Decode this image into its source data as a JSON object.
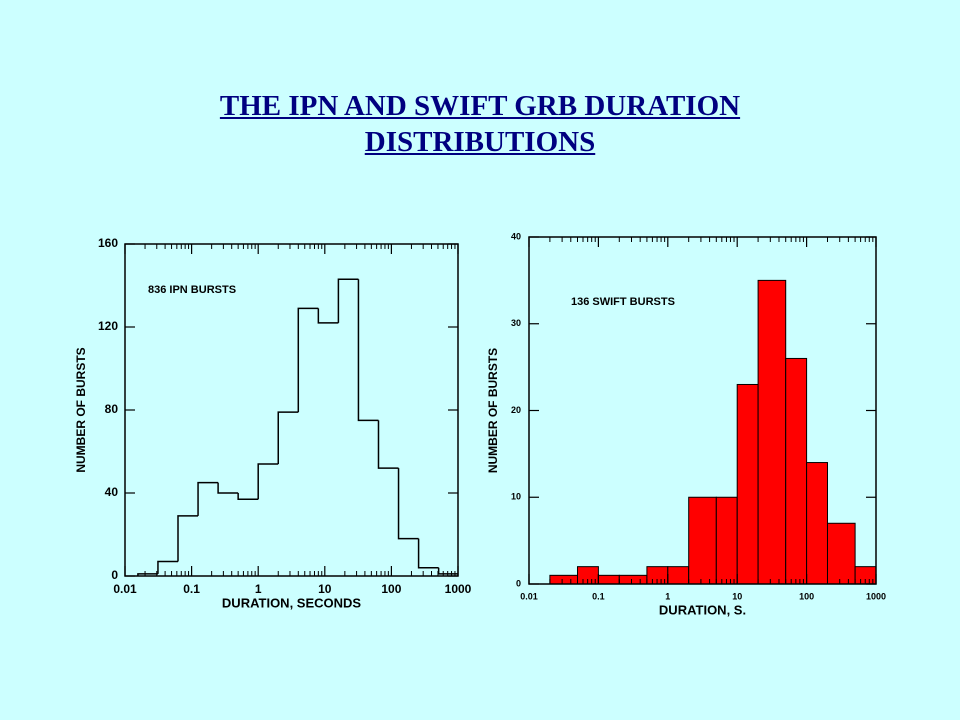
{
  "title": "THE IPN AND SWIFT GRB DURATION DISTRIBUTIONS",
  "chart_data": [
    {
      "type": "histogram",
      "histtype": "step",
      "color": "#000000",
      "annotation": "836 IPN BURSTS",
      "xlabel": "DURATION, SECONDS",
      "ylabel": "NUMBER OF BURSTS",
      "xscale": "log",
      "bins": [
        0.015625,
        0.03125,
        0.0625,
        0.125,
        0.25,
        0.5,
        1,
        2,
        4,
        8,
        16,
        32,
        64,
        128,
        256,
        512,
        1024
      ],
      "values": [
        1,
        7,
        29,
        45,
        40,
        37,
        54,
        79,
        129,
        122,
        143,
        75,
        52,
        18,
        4,
        1
      ],
      "xlim": [
        0.01,
        1000
      ],
      "xticks": [
        0.01,
        0.1,
        1,
        10,
        100,
        1000
      ],
      "ylim": [
        0,
        160
      ],
      "yticks": [
        0,
        40,
        80,
        120,
        160
      ]
    },
    {
      "type": "histogram",
      "histtype": "bar",
      "color": "#ff0000",
      "annotation": "136 SWIFT BURSTS",
      "xlabel": "DURATION, S.",
      "ylabel": "NUMBER OF BURSTS",
      "xscale": "log",
      "bins": [
        0.02,
        0.05,
        0.1,
        0.2,
        0.5,
        1,
        2,
        5,
        10,
        20,
        50,
        100,
        200,
        500,
        1000
      ],
      "values": [
        1,
        2,
        1,
        1,
        2,
        2,
        10,
        10,
        23,
        35,
        26,
        14,
        7,
        2
      ],
      "xlim": [
        0.01,
        1000
      ],
      "xticks": [
        0.01,
        0.1,
        1,
        10,
        100,
        1000
      ],
      "ylim": [
        0,
        40
      ],
      "yticks": [
        0,
        10,
        20,
        30,
        40
      ]
    }
  ]
}
